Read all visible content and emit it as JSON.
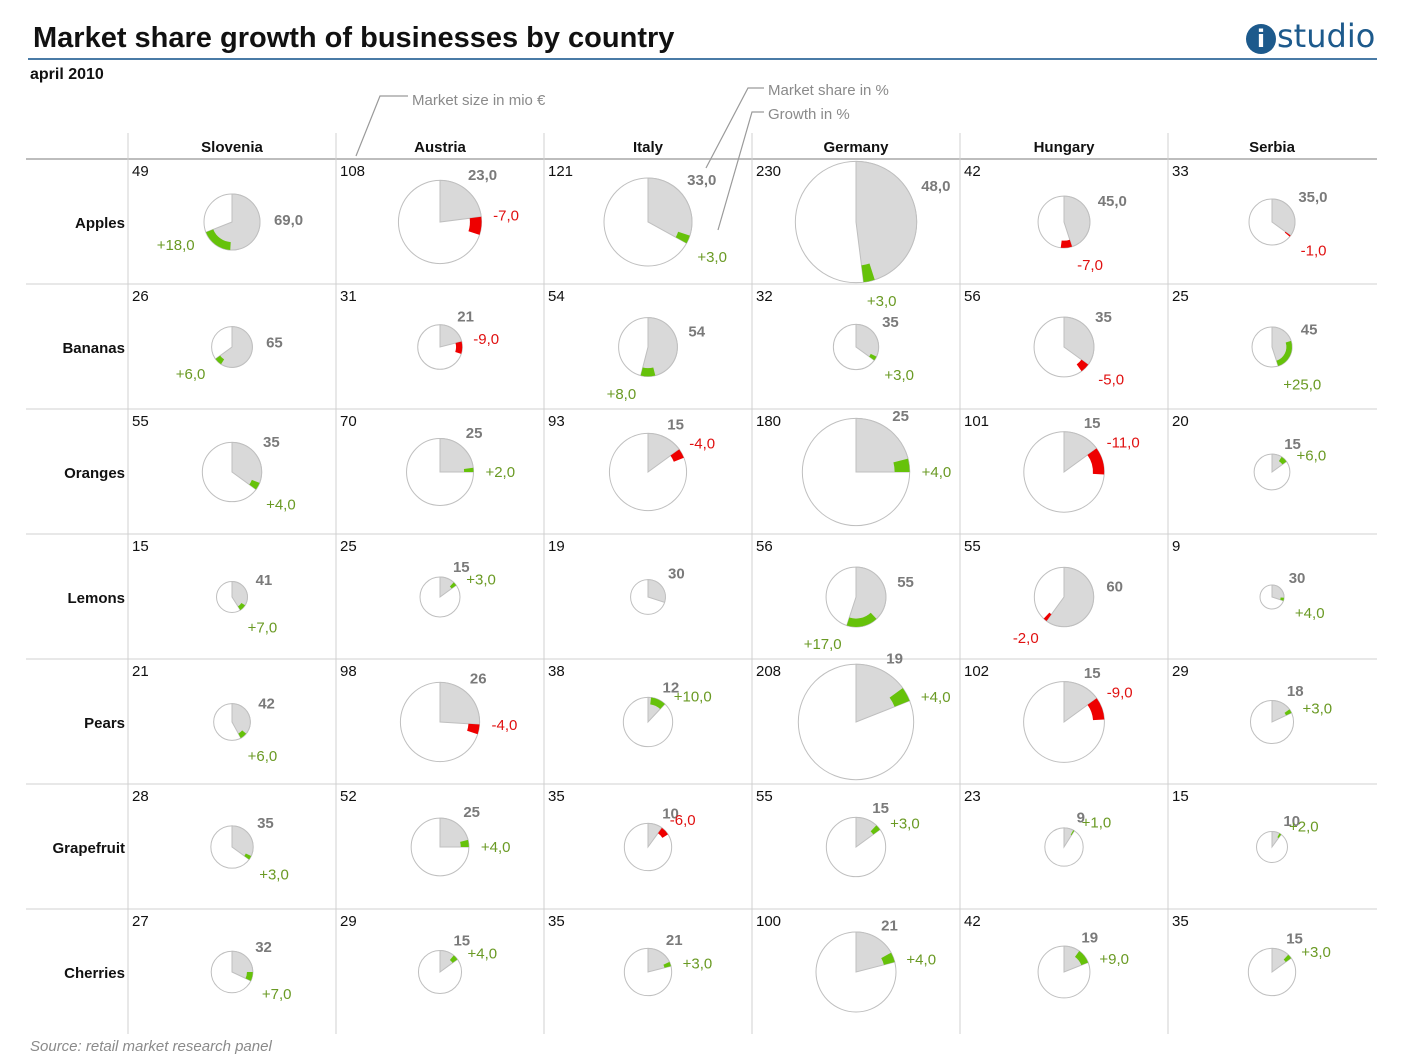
{
  "header": {
    "title": "Market share growth of businesses by country",
    "subtitle": "april 2010",
    "logo_text": "studio",
    "logo_mark": "i"
  },
  "legend": {
    "market_size": "Market size in mio €",
    "market_share": "Market share in  %",
    "growth": "Growth in  %"
  },
  "footer": {
    "source": "Source: retail market research panel"
  },
  "colors": {
    "share_fill": "#d9d9d9",
    "circle_outline": "#bfbfbf",
    "growth_positive": "#66c20a",
    "growth_negative": "#ee0000",
    "grid": "#d0d0d0",
    "accent": "#1d5a8c"
  },
  "chart_data": {
    "type": "pie",
    "description_encoding": "circle area = market size in mio €; grey wedge = market share %; colored segment = growth %",
    "countries": [
      "Slovenia",
      "Austria",
      "Italy",
      "Germany",
      "Hungary",
      "Serbia"
    ],
    "products": [
      "Apples",
      "Bananas",
      "Oranges",
      "Lemons",
      "Pears",
      "Grapefruit",
      "Cherries"
    ],
    "market_size": [
      [
        49,
        108,
        121,
        230,
        42,
        33
      ],
      [
        26,
        31,
        54,
        32,
        56,
        25
      ],
      [
        55,
        70,
        93,
        180,
        101,
        20
      ],
      [
        15,
        25,
        19,
        56,
        55,
        9
      ],
      [
        21,
        98,
        38,
        208,
        102,
        29
      ],
      [
        28,
        52,
        35,
        55,
        23,
        15
      ],
      [
        27,
        29,
        35,
        100,
        42,
        35
      ]
    ],
    "market_share": [
      [
        69,
        23,
        33,
        48,
        45,
        35
      ],
      [
        65,
        21,
        54,
        35,
        35,
        45
      ],
      [
        35,
        25,
        15,
        25,
        15,
        15
      ],
      [
        41,
        15,
        30,
        55,
        60,
        30
      ],
      [
        42,
        26,
        12,
        19,
        15,
        18
      ],
      [
        35,
        25,
        10,
        15,
        9,
        10
      ],
      [
        32,
        15,
        21,
        21,
        19,
        15
      ]
    ],
    "growth": [
      [
        18,
        -7,
        3,
        3,
        -7,
        -1
      ],
      [
        6,
        -9,
        8,
        3,
        -5,
        25
      ],
      [
        4,
        2,
        -4,
        4,
        -11,
        6
      ],
      [
        7,
        3,
        null,
        17,
        -2,
        4
      ],
      [
        6,
        -4,
        10,
        4,
        -9,
        3
      ],
      [
        3,
        4,
        -6,
        3,
        1,
        2
      ],
      [
        7,
        4,
        3,
        4,
        9,
        3
      ]
    ],
    "share_labels": [
      [
        "69,0",
        "23,0",
        "33,0",
        "48,0",
        "45,0",
        "35,0"
      ],
      [
        "65",
        "21",
        "54",
        "35",
        "35",
        "45"
      ],
      [
        "35",
        "25",
        "15",
        "25",
        "15",
        "15"
      ],
      [
        "41",
        "15",
        "30",
        "55",
        "60",
        "30"
      ],
      [
        "42",
        "26",
        "12",
        "19",
        "15",
        "18"
      ],
      [
        "35",
        "25",
        "10",
        "15",
        "9",
        "10"
      ],
      [
        "32",
        "15",
        "21",
        "21",
        "19",
        "15"
      ]
    ],
    "growth_labels": [
      [
        "+18,0",
        "-7,0",
        "+3,0",
        "+3,0",
        "-7,0",
        "-1,0"
      ],
      [
        "+6,0",
        "-9,0",
        "+8,0",
        "+3,0",
        "-5,0",
        "+25,0"
      ],
      [
        "+4,0",
        "+2,0",
        "-4,0",
        "+4,0",
        "-11,0",
        "+6,0"
      ],
      [
        "+7,0",
        "+3,0",
        "",
        "+17,0",
        "-2,0",
        "+4,0"
      ],
      [
        "+6,0",
        "-4,0",
        "+10,0",
        "+4,0",
        "-9,0",
        "+3,0"
      ],
      [
        "+3,0",
        "+4,0",
        "-6,0",
        "+3,0",
        "+1,0",
        "+2,0"
      ],
      [
        "+7,0",
        "+4,0",
        "+3,0",
        "+4,0",
        "+9,0",
        "+3,0"
      ]
    ]
  }
}
